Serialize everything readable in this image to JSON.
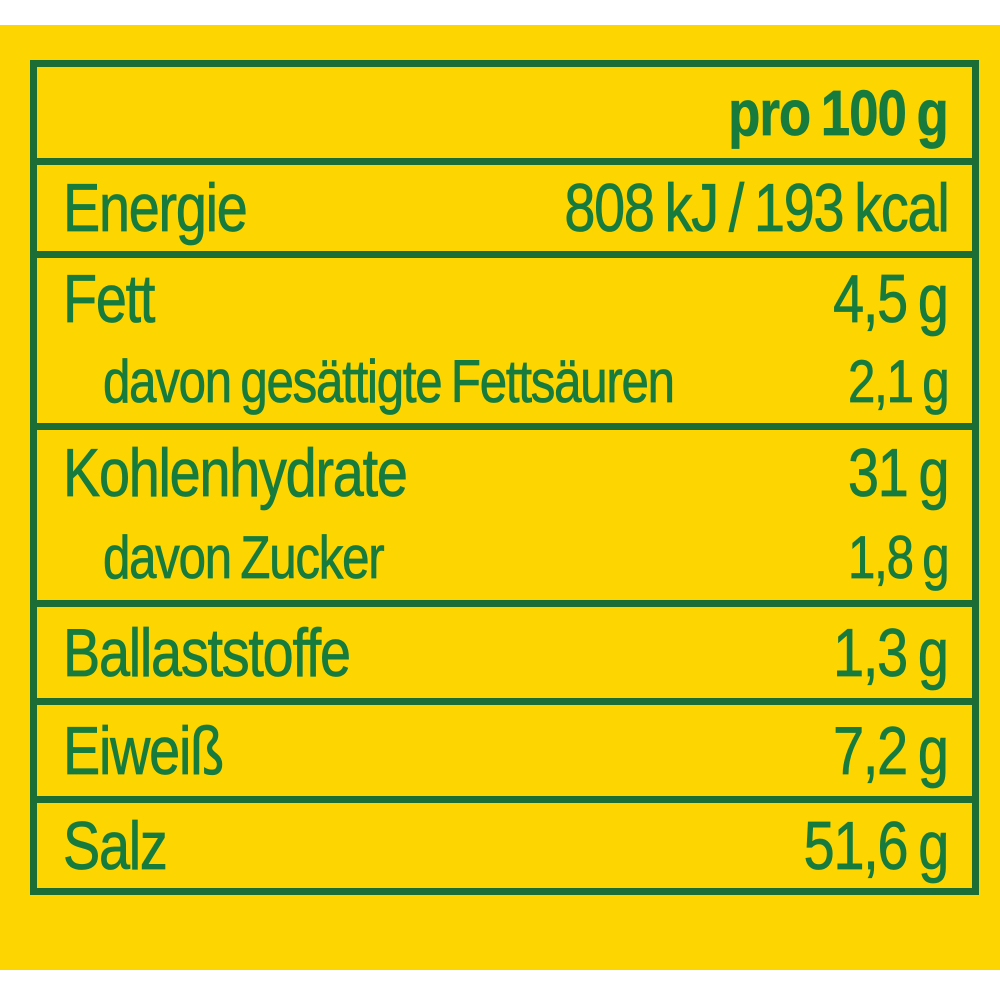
{
  "colors": {
    "background_yellow": "#FDD500",
    "text_green": "#177B3D",
    "border_green": "#1B6D35",
    "page_white": "#FFFFFF"
  },
  "table": {
    "header": {
      "per_label": "pro 100 g"
    },
    "rows": [
      {
        "id": "energie",
        "label": "Energie",
        "value": "808 kJ / 193 kcal"
      },
      {
        "id": "fett",
        "label": "Fett",
        "value": "4,5 g",
        "sub_label": "davon gesättigte Fettsäuren",
        "sub_value": "2,1 g"
      },
      {
        "id": "kohlenhydrate",
        "label": "Kohlenhydrate",
        "value": "31 g",
        "sub_label": "davon Zucker",
        "sub_value": "1,8 g"
      },
      {
        "id": "ballaststoffe",
        "label": "Ballaststoffe",
        "value": "1,3 g"
      },
      {
        "id": "eiweiss",
        "label": "Eiweiß",
        "value": "7,2 g"
      },
      {
        "id": "salz",
        "label": "Salz",
        "value": "51,6 g"
      }
    ]
  }
}
